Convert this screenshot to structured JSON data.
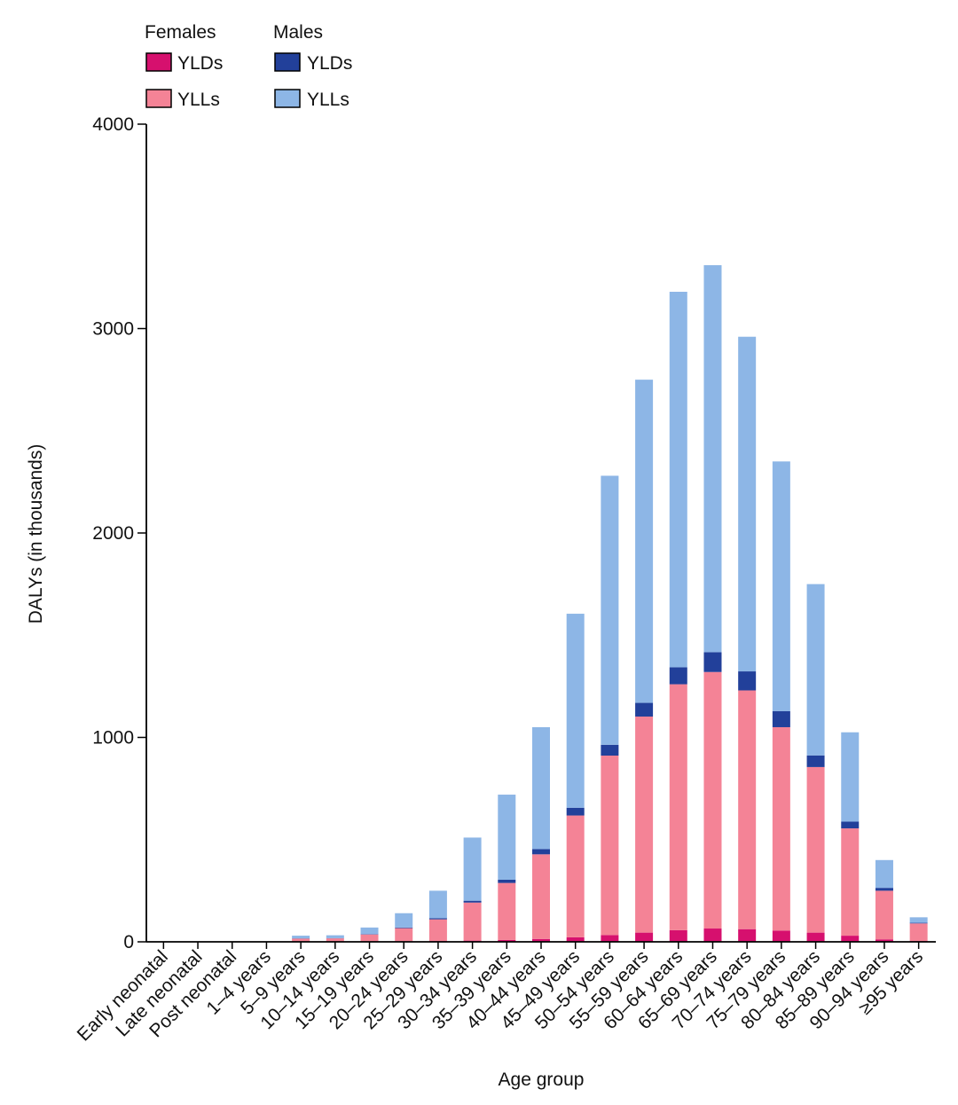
{
  "chart_data": {
    "type": "bar",
    "stacked": true,
    "xlabel": "Age group",
    "ylabel": "DALYs (in thousands)",
    "ylim": [
      0,
      4000
    ],
    "yticks": [
      0,
      1000,
      2000,
      3000,
      4000
    ],
    "grid": false,
    "legend_position": "top-left",
    "legend": {
      "groups": [
        {
          "title": "Females",
          "entries": [
            "YLDs",
            "YLLs"
          ]
        },
        {
          "title": "Males",
          "entries": [
            "YLDs",
            "YLLs"
          ]
        }
      ]
    },
    "categories": [
      "Early neonatal",
      "Late neonatal",
      "Post neonatal",
      "1–4 years",
      "5–9 years",
      "10–14 years",
      "15–19 years",
      "20–24 years",
      "25–29 years",
      "30–34 years",
      "35–39 years",
      "40–44 years",
      "45–49 years",
      "50–54 years",
      "55–59 years",
      "60–64 years",
      "65–69 years",
      "70–74 years",
      "75–79 years",
      "80–84 years",
      "85–89 years",
      "90–94 years",
      "≥95 years"
    ],
    "series": [
      {
        "name": "Females YLDs",
        "color": "#d6106e",
        "values": [
          0,
          0,
          0,
          0,
          1,
          1,
          2,
          3,
          4,
          6,
          9,
          14,
          22,
          33,
          45,
          57,
          65,
          62,
          55,
          45,
          30,
          12,
          4
        ]
      },
      {
        "name": "Females YLLs",
        "color": "#f48396",
        "values": [
          0,
          0,
          0,
          0,
          15,
          16,
          34,
          64,
          106,
          186,
          279,
          414,
          596,
          878,
          1057,
          1203,
          1255,
          1168,
          995,
          810,
          525,
          238,
          86
        ]
      },
      {
        "name": "Males YLDs",
        "color": "#22409a",
        "values": [
          0,
          0,
          0,
          0,
          1,
          1,
          2,
          3,
          5,
          9,
          16,
          26,
          38,
          53,
          67,
          83,
          97,
          93,
          78,
          57,
          33,
          14,
          3
        ]
      },
      {
        "name": "Males YLLs",
        "color": "#8db6e6",
        "values": [
          0,
          0,
          0,
          0,
          13,
          14,
          32,
          70,
          135,
          309,
          416,
          596,
          949,
          1316,
          1581,
          1837,
          1893,
          1637,
          1222,
          838,
          437,
          136,
          27
        ]
      }
    ],
    "colors": {
      "female_yld": "#d6106e",
      "female_yll": "#f48396",
      "male_yld": "#22409a",
      "male_yll": "#8db6e6",
      "axis": "#000000"
    }
  }
}
